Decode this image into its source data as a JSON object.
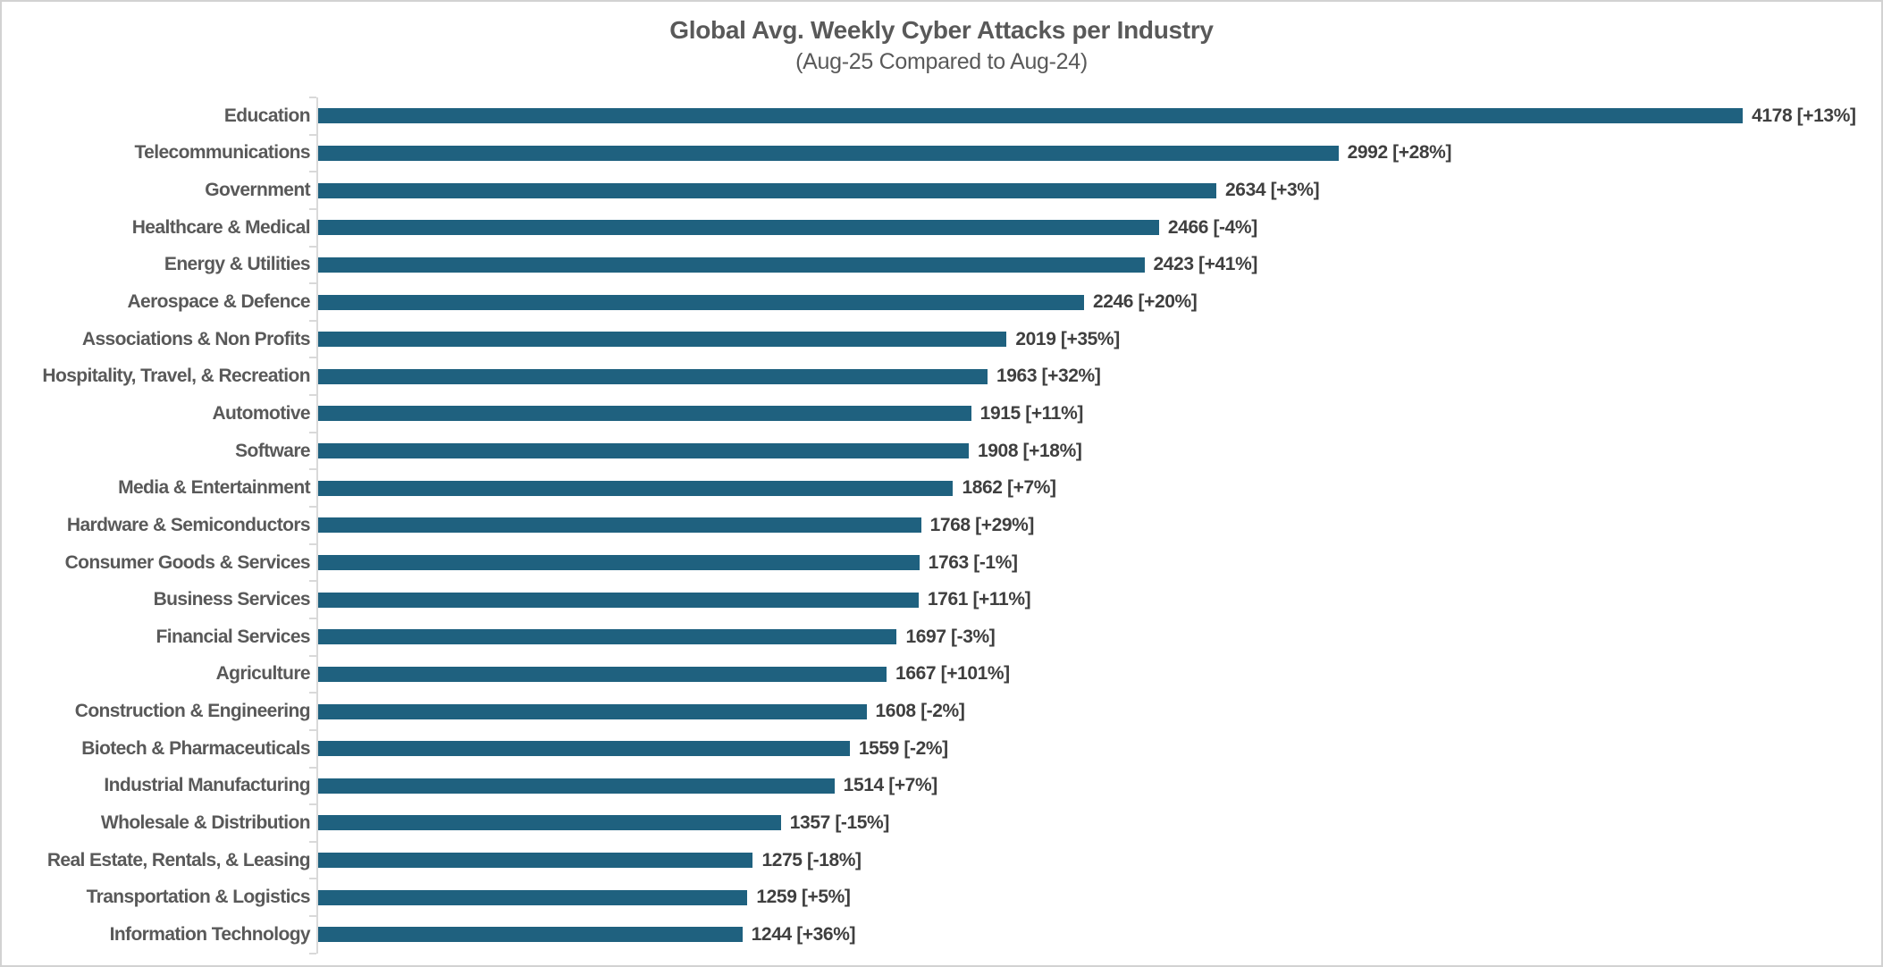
{
  "page": {
    "background": "#FFFFFF",
    "border_color": "#D2D2D2"
  },
  "header": {
    "title": "Global Avg. Weekly Cyber Attacks per Industry",
    "subtitle": "(Aug-25 Compared to Aug-24)"
  },
  "colors": {
    "bar": "#1F617F",
    "title_text": "#595959",
    "category_text": "#595959",
    "value_text": "#3F3F3F",
    "axis": "#D9D9D9"
  },
  "chart_data": {
    "type": "bar",
    "orientation": "horizontal",
    "title": "Global Avg. Weekly Cyber Attacks per Industry",
    "subtitle": "(Aug-25 Compared to Aug-24)",
    "xlabel": "",
    "ylabel": "",
    "xlim": [
      0,
      4500
    ],
    "grid": false,
    "legend": false,
    "bar_color": "#1F617F",
    "categories": [
      "Education",
      "Telecommunications",
      "Government",
      "Healthcare & Medical",
      "Energy & Utilities",
      "Aerospace & Defence",
      "Associations & Non Profits",
      "Hospitality, Travel, & Recreation",
      "Automotive",
      "Software",
      "Media & Entertainment",
      "Hardware & Semiconductors",
      "Consumer Goods & Services",
      "Business Services",
      "Financial Services",
      "Agriculture",
      "Construction & Engineering",
      "Biotech & Pharmaceuticals",
      "Industrial Manufacturing",
      "Wholesale & Distribution",
      "Real Estate, Rentals, & Leasing",
      "Transportation & Logistics",
      "Information Technology"
    ],
    "values": [
      4178,
      2992,
      2634,
      2466,
      2423,
      2246,
      2019,
      1963,
      1915,
      1908,
      1862,
      1768,
      1763,
      1761,
      1697,
      1667,
      1608,
      1559,
      1514,
      1357,
      1275,
      1259,
      1244
    ],
    "changes": [
      "+13%",
      "+28%",
      "+3%",
      "-4%",
      "+41%",
      "+20%",
      "+35%",
      "+32%",
      "+11%",
      "+18%",
      "+7%",
      "+29%",
      "-1%",
      "+11%",
      "-3%",
      "+101%",
      "-2%",
      "-2%",
      "+7%",
      "-15%",
      "-18%",
      "+5%",
      "+36%"
    ],
    "value_labels": [
      "4178 [+13%]",
      "2992 [+28%]",
      "2634 [+3%]",
      "2466 [-4%]",
      "2423 [+41%]",
      "2246 [+20%]",
      "2019 [+35%]",
      "1963 [+32%]",
      "1915 [+11%]",
      "1908 [+18%]",
      "1862 [+7%]",
      "1768 [+29%]",
      "1763 [-1%]",
      "1761 [+11%]",
      "1697 [-3%]",
      "1667 [+101%]",
      "1608 [-2%]",
      "1559 [-2%]",
      "1514 [+7%]",
      "1357 [-15%]",
      "1275 [-18%]",
      "1259 [+5%]",
      "1244 [+36%]"
    ]
  }
}
